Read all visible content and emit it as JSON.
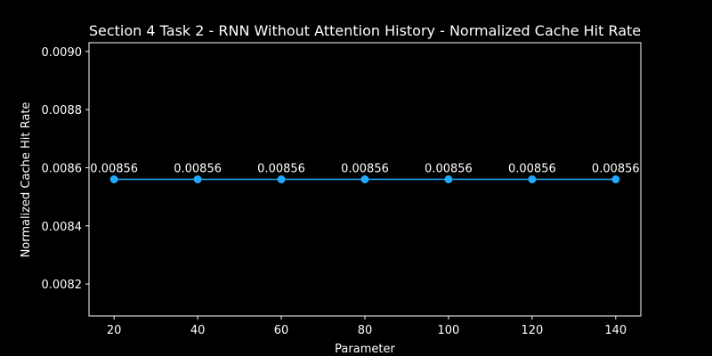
{
  "colors": {
    "background": "#000000",
    "foreground": "#ffffff",
    "series": "#1fa9ff"
  },
  "chart_data": {
    "type": "line",
    "title": "Section 4 Task 2 - RNN Without Attention History - Normalized Cache Hit Rate",
    "xlabel": "Parameter",
    "ylabel": "Normalized Cache Hit Rate",
    "x": [
      20,
      40,
      60,
      80,
      100,
      120,
      140
    ],
    "series": [
      {
        "values": [
          0.00856,
          0.00856,
          0.00856,
          0.00856,
          0.00856,
          0.00856,
          0.00856
        ],
        "data_labels": [
          "0.00856",
          "0.00856",
          "0.00856",
          "0.00856",
          "0.00856",
          "0.00856",
          "0.00856"
        ]
      }
    ],
    "xlim": [
      14,
      146
    ],
    "ylim": [
      0.00809,
      0.00903
    ],
    "xticks": [
      20,
      40,
      60,
      80,
      100,
      120,
      140
    ],
    "xtick_labels": [
      "20",
      "40",
      "60",
      "80",
      "100",
      "120",
      "140"
    ],
    "yticks": [
      0.0082,
      0.0084,
      0.0086,
      0.0088,
      0.009
    ],
    "ytick_labels": [
      "0.0082",
      "0.0084",
      "0.0086",
      "0.0088",
      "0.0090"
    ],
    "grid": false,
    "legend": "none"
  }
}
